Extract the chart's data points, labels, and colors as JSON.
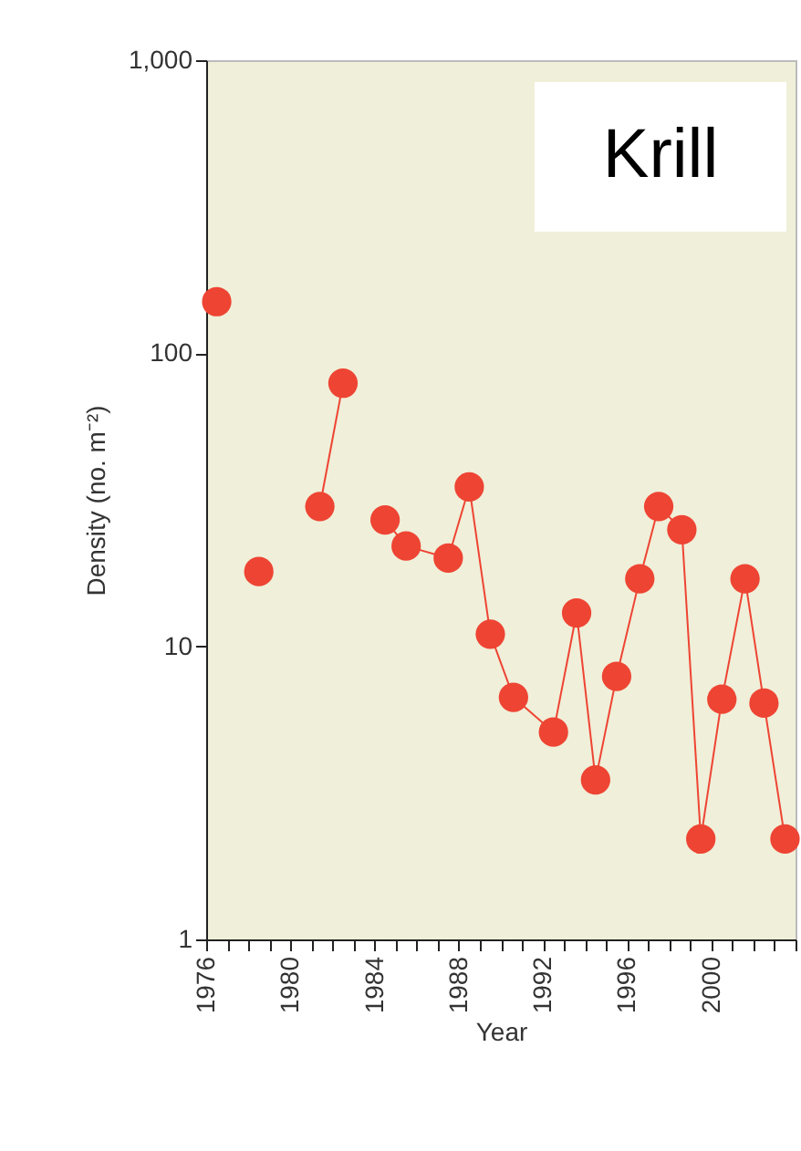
{
  "chart_data": {
    "type": "line",
    "xlabel": "Year",
    "ylabel": "Density (no. m⁻²)",
    "annotations": [
      "Krill"
    ],
    "log": "y",
    "grid": false,
    "marker": "circle",
    "line_style": "solid",
    "xlim": [
      1976,
      2004
    ],
    "xticks": [
      1976,
      {
        "value": 1977,
        "label": null
      },
      {
        "value": 1978,
        "label": null
      },
      {
        "value": 1979,
        "label": null
      },
      1980,
      {
        "value": 1981,
        "label": null
      },
      {
        "value": 1982,
        "label": null
      },
      {
        "value": 1983,
        "label": null
      },
      1984,
      {
        "value": 1985,
        "label": null
      },
      {
        "value": 1986,
        "label": null
      },
      {
        "value": 1987,
        "label": null
      },
      1988,
      {
        "value": 1989,
        "label": null
      },
      {
        "value": 1990,
        "label": null
      },
      {
        "value": 1991,
        "label": null
      },
      1992,
      {
        "value": 1993,
        "label": null
      },
      {
        "value": 1994,
        "label": null
      },
      {
        "value": 1995,
        "label": null
      },
      1996,
      {
        "value": 1997,
        "label": null
      },
      {
        "value": 1998,
        "label": null
      },
      {
        "value": 1999,
        "label": null
      },
      2000,
      {
        "value": 2001,
        "label": null
      },
      {
        "value": 2002,
        "label": null
      },
      {
        "value": 2003,
        "label": null
      },
      {
        "value": 2004,
        "label": null
      }
    ],
    "ylim": [
      1,
      1000
    ],
    "yticks": [
      1,
      10,
      100,
      {
        "value": 1000,
        "label": "1,000"
      }
    ],
    "series": [
      {
        "color": "#ee4433",
        "x": [
          1976.5
        ],
        "values": [
          150
        ]
      },
      {
        "color": "#ee4433",
        "x": [
          1978.5
        ],
        "values": [
          18
        ]
      },
      {
        "color": "#ee4433",
        "x": [
          1981.4,
          1982.5
        ],
        "values": [
          30,
          79
        ]
      },
      {
        "color": "#ee4433",
        "x": [
          1984.5,
          1985.5,
          1987.5,
          1988.5,
          1989.5,
          1990.6,
          1992.5,
          1993.6,
          1994.5,
          1995.5,
          1996.6,
          1997.5,
          1998.6,
          1999.5,
          2000.5,
          2001.6,
          2002.5,
          2003.5
        ],
        "values": [
          27,
          22,
          20,
          35,
          11,
          6.7,
          5.1,
          13,
          3.5,
          7.9,
          17,
          30,
          25,
          2.2,
          6.6,
          17,
          6.4,
          2.2
        ]
      }
    ]
  }
}
